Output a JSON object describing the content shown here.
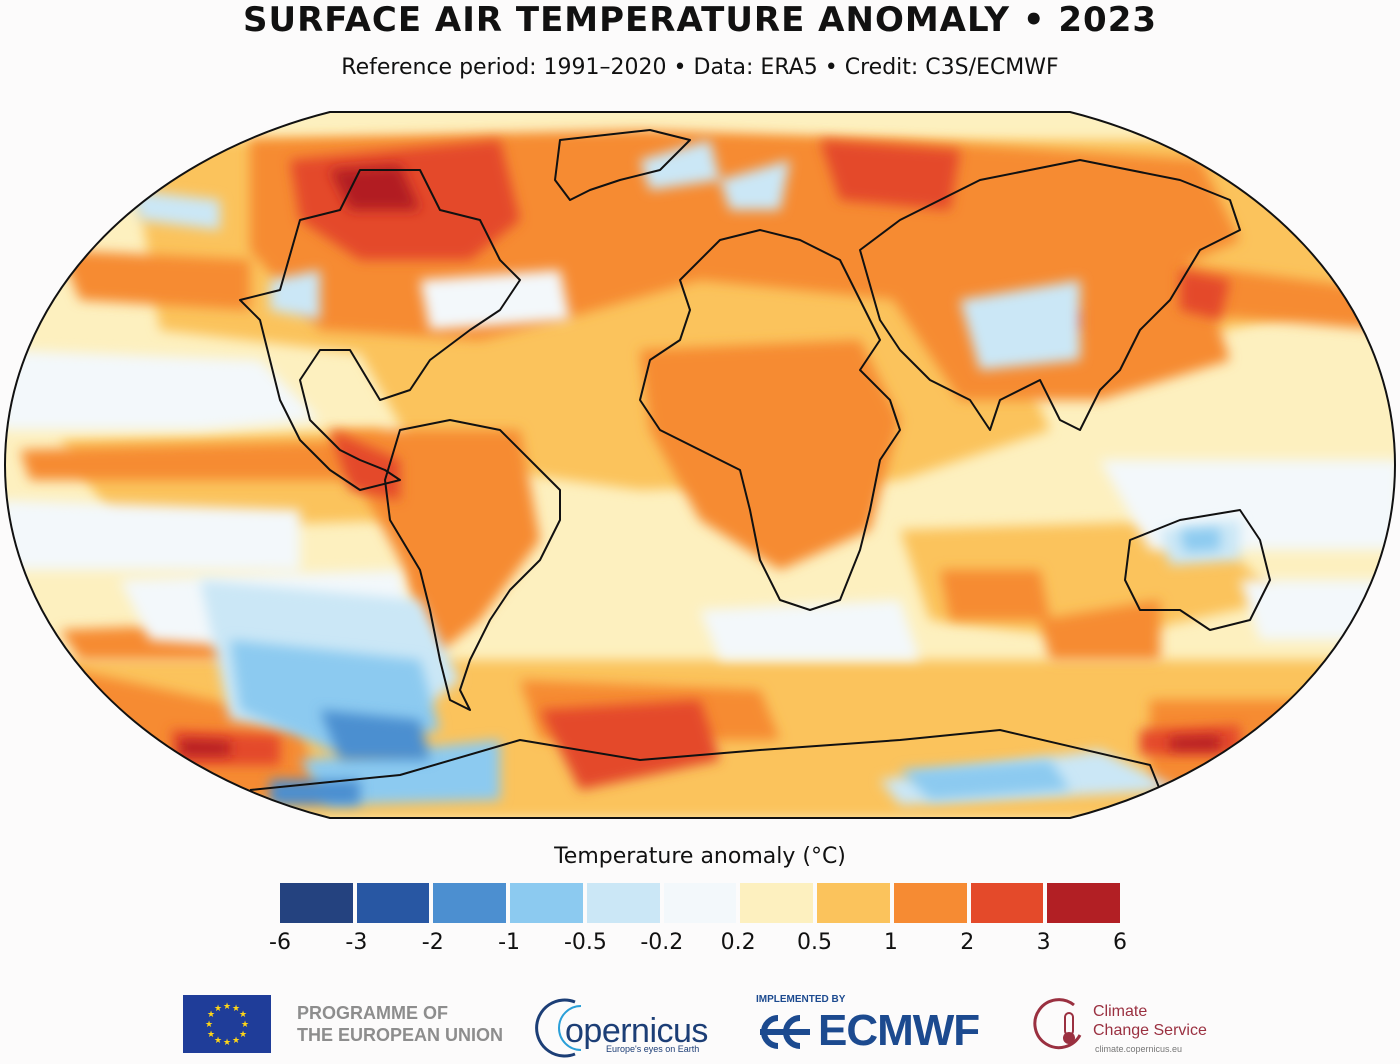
{
  "title": "SURFACE AIR TEMPERATURE ANOMALY • 2023",
  "subtitle": "Reference period: 1991–2020 • Data: ERA5 • Credit: C3S/ECMWF",
  "legend": {
    "title": "Temperature anomaly (°C)",
    "bins": [
      {
        "color": "#24427f"
      },
      {
        "color": "#2857a3"
      },
      {
        "color": "#4c8fd0"
      },
      {
        "color": "#8ccaf0"
      },
      {
        "color": "#cbe7f6"
      },
      {
        "color": "#f3f8fb"
      },
      {
        "color": "#fdf0bf"
      },
      {
        "color": "#fbc35c"
      },
      {
        "color": "#f68b33"
      },
      {
        "color": "#e44a2a"
      },
      {
        "color": "#b21f24"
      }
    ],
    "ticks": [
      "-6",
      "-3",
      "-2",
      "-1",
      "-0.5",
      "-0.2",
      "0.2",
      "0.5",
      "1",
      "2",
      "3",
      "6"
    ]
  },
  "map": {
    "projection": "robinson",
    "colors": {
      "ocean_base": "#fdf0bf",
      "land_outline": "#111111",
      "warm": "#fbc35c",
      "warmer": "#f68b33",
      "hot": "#e44a2a",
      "hottest": "#b21f24",
      "neutral": "#f3f8fb",
      "cool": "#cbe7f6",
      "cooler": "#8ccaf0",
      "cold": "#4c8fd0"
    }
  },
  "logos": {
    "eu": {
      "line1": "PROGRAMME OF",
      "line2": "THE EUROPEAN UNION"
    },
    "copernicus": {
      "name": "opernicus",
      "tagline": "Europe's eyes on Earth"
    },
    "ecmwf": {
      "implemented_by": "IMPLEMENTED BY",
      "name": "ECMWF"
    },
    "ccs": {
      "line1": "Climate",
      "line2": "Change Service",
      "url": "climate.copernicus.eu"
    }
  }
}
